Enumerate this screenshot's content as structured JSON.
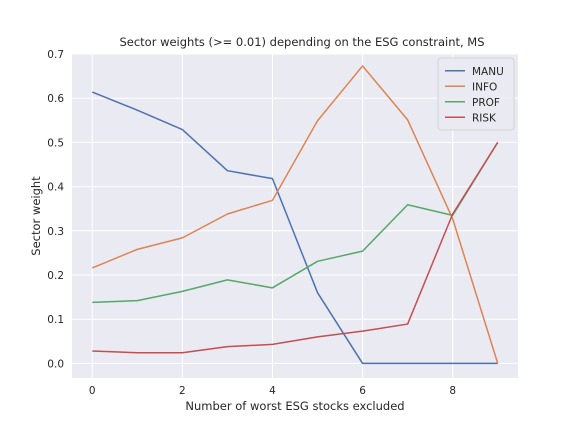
{
  "chart_data": {
    "type": "line",
    "title": "Sector weights (>= 0.01) depending on the ESG constraint, MS",
    "xlabel": "Number of worst ESG stocks excluded",
    "ylabel": "Sector weight",
    "x": [
      0,
      1,
      2,
      3,
      4,
      5,
      6,
      7,
      8,
      9
    ],
    "xlim": [
      -0.45,
      9.45
    ],
    "ylim": [
      -0.033,
      0.7
    ],
    "xticks": [
      0,
      2,
      4,
      6,
      8
    ],
    "yticks": [
      0.0,
      0.1,
      0.2,
      0.3,
      0.4,
      0.5,
      0.6,
      0.7
    ],
    "xtick_labels": [
      "0",
      "2",
      "4",
      "6",
      "8"
    ],
    "ytick_labels": [
      "0.0",
      "0.1",
      "0.2",
      "0.3",
      "0.4",
      "0.5",
      "0.6",
      "0.7"
    ],
    "grid": true,
    "legend_position": "top-right",
    "series": [
      {
        "name": "MANU",
        "color": "#4c72b0",
        "values": [
          0.614,
          0.573,
          0.529,
          0.436,
          0.418,
          0.16,
          0.0,
          0.0,
          0.0,
          0.0
        ]
      },
      {
        "name": "INFO",
        "color": "#dd8452",
        "values": [
          0.216,
          0.258,
          0.284,
          0.338,
          0.369,
          0.549,
          0.673,
          0.551,
          0.327,
          0.0
        ]
      },
      {
        "name": "PROF",
        "color": "#55a868",
        "values": [
          0.138,
          0.142,
          0.163,
          0.189,
          0.171,
          0.231,
          0.254,
          0.359,
          0.335,
          0.5
        ]
      },
      {
        "name": "RISK",
        "color": "#c44e52",
        "values": [
          0.028,
          0.024,
          0.024,
          0.038,
          0.043,
          0.06,
          0.073,
          0.089,
          0.338,
          0.5
        ]
      }
    ]
  }
}
